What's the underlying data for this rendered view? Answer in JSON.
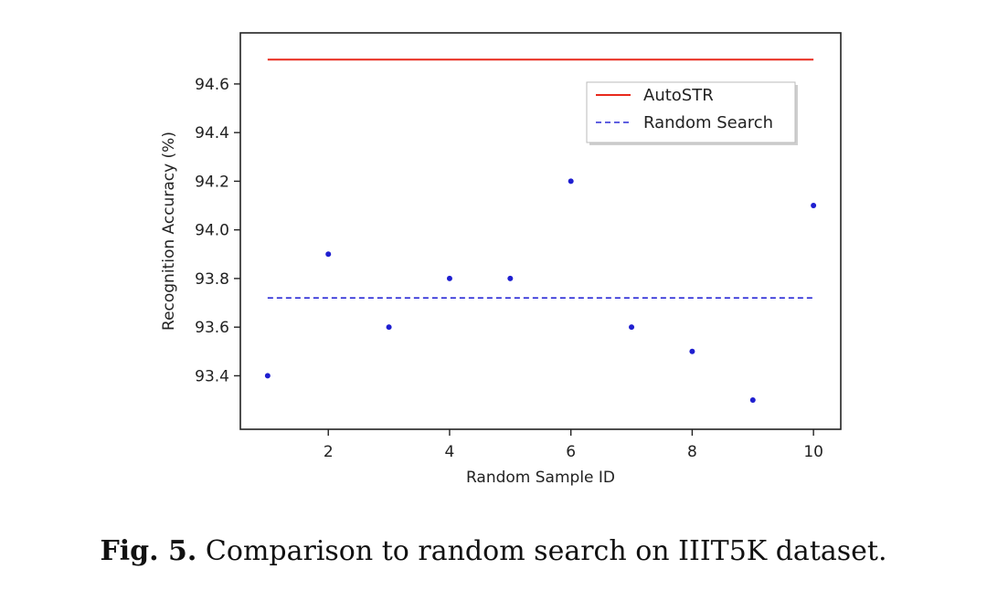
{
  "chart_data": {
    "type": "scatter",
    "xlabel": "Random Sample ID",
    "ylabel": "Recognition Accuracy (%)",
    "xlim": [
      0.55,
      10.45
    ],
    "ylim": [
      93.18,
      94.81
    ],
    "xticks": [
      2,
      4,
      6,
      8,
      10
    ],
    "yticks": [
      93.4,
      93.6,
      93.8,
      94.0,
      94.2,
      94.4,
      94.6
    ],
    "xtick_labels": [
      "2",
      "4",
      "6",
      "8",
      "10"
    ],
    "ytick_labels": [
      "93.4",
      "93.6",
      "93.8",
      "94.0",
      "94.2",
      "94.4",
      "94.6"
    ],
    "grid": false,
    "legend_position": "upper-right",
    "series": [
      {
        "name": "AutoSTR",
        "kind": "line",
        "style": "solid",
        "color": "#e8291c",
        "x": [
          1,
          10
        ],
        "y": [
          94.7,
          94.7
        ]
      },
      {
        "name": "Random Search",
        "kind": "line",
        "style": "dashed",
        "color": "#2b2bd6",
        "x": [
          1,
          10
        ],
        "y": [
          93.72,
          93.72
        ]
      },
      {
        "kind": "points",
        "color": "#1f1fd0",
        "x": [
          1,
          2,
          3,
          4,
          5,
          6,
          7,
          8,
          9,
          10
        ],
        "y": [
          93.4,
          93.9,
          93.6,
          93.8,
          93.8,
          94.2,
          93.6,
          93.5,
          93.3,
          94.1
        ]
      }
    ]
  },
  "caption": {
    "label": "Fig. 5.",
    "text": "Comparison to random search on IIIT5K dataset."
  }
}
